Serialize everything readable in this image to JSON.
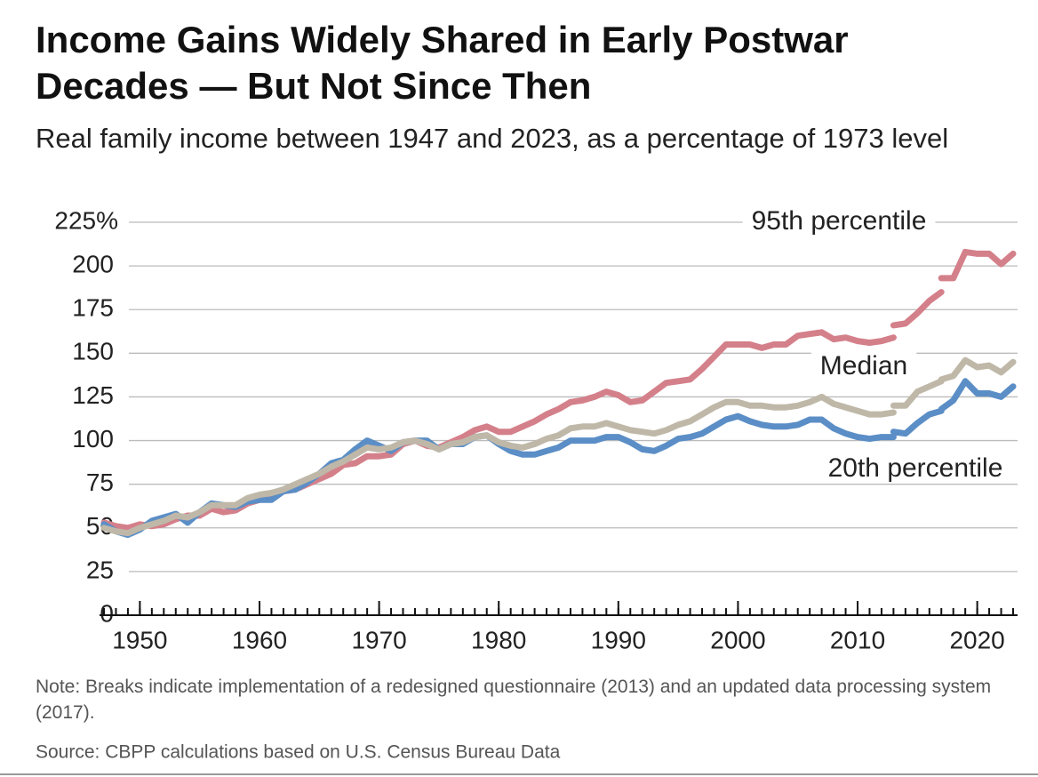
{
  "chart_data": {
    "type": "line",
    "title": "Income Gains Widely Shared in Early Postwar Decades — But Not Since Then",
    "subtitle": "Real family income between 1947 and 2023, as a percentage of 1973 level",
    "note": "Note: Breaks indicate implementation of a redesigned questionnaire (2013) and an updated data processing system (2017).",
    "source": "Source: CBPP calculations based on U.S. Census Bureau Data",
    "x": [
      1947,
      1948,
      1949,
      1950,
      1951,
      1952,
      1953,
      1954,
      1955,
      1956,
      1957,
      1958,
      1959,
      1960,
      1961,
      1962,
      1963,
      1964,
      1965,
      1966,
      1967,
      1968,
      1969,
      1970,
      1971,
      1972,
      1973,
      1974,
      1975,
      1976,
      1977,
      1978,
      1979,
      1980,
      1981,
      1982,
      1983,
      1984,
      1985,
      1986,
      1987,
      1988,
      1989,
      1990,
      1991,
      1992,
      1993,
      1994,
      1995,
      1996,
      1997,
      1998,
      1999,
      2000,
      2001,
      2002,
      2003,
      2004,
      2005,
      2006,
      2007,
      2008,
      2009,
      2010,
      2011,
      2012,
      2013,
      2013,
      2013,
      2014,
      2015,
      2016,
      2017,
      2017,
      2017,
      2018,
      2019,
      2020,
      2021,
      2022,
      2023
    ],
    "series": [
      {
        "name": "95th percentile",
        "color": "#d4808a",
        "values": [
          53,
          51,
          50,
          52,
          51,
          52,
          55,
          57,
          57,
          61,
          59,
          60,
          64,
          66,
          69,
          71,
          72,
          75,
          78,
          81,
          86,
          87,
          91,
          91,
          92,
          98,
          100,
          97,
          96,
          99,
          102,
          106,
          108,
          105,
          105,
          108,
          111,
          115,
          118,
          122,
          123,
          125,
          128,
          126,
          122,
          123,
          128,
          133,
          134,
          135,
          141,
          148,
          155,
          155,
          155,
          153,
          155,
          155,
          160,
          161,
          162,
          158,
          159,
          157,
          156,
          157,
          159,
          null,
          166,
          167,
          173,
          180,
          185,
          null,
          193,
          193,
          208,
          207,
          207,
          201,
          207
        ]
      },
      {
        "name": "20th percentile",
        "color": "#5b8ec6",
        "values": [
          52,
          48,
          46,
          49,
          54,
          56,
          58,
          53,
          59,
          64,
          63,
          62,
          65,
          66,
          66,
          71,
          72,
          76,
          81,
          87,
          89,
          95,
          100,
          97,
          94,
          99,
          100,
          100,
          95,
          98,
          98,
          102,
          103,
          98,
          94,
          92,
          92,
          94,
          96,
          100,
          100,
          100,
          102,
          102,
          99,
          95,
          94,
          97,
          101,
          102,
          104,
          108,
          112,
          114,
          111,
          109,
          108,
          108,
          109,
          112,
          112,
          107,
          104,
          102,
          101,
          102,
          102,
          null,
          105,
          104,
          110,
          115,
          117,
          null,
          118,
          123,
          134,
          127,
          127,
          125,
          131
        ]
      },
      {
        "name": "Median",
        "color": "#bfb8a8",
        "values": [
          50,
          48,
          47,
          50,
          52,
          54,
          57,
          56,
          59,
          63,
          63,
          63,
          67,
          69,
          70,
          72,
          75,
          78,
          81,
          85,
          88,
          92,
          96,
          95,
          96,
          99,
          100,
          98,
          95,
          98,
          99,
          102,
          103,
          99,
          97,
          96,
          98,
          101,
          103,
          107,
          108,
          108,
          110,
          108,
          106,
          105,
          104,
          106,
          109,
          111,
          115,
          119,
          122,
          122,
          120,
          120,
          119,
          119,
          120,
          122,
          125,
          121,
          119,
          117,
          115,
          115,
          116,
          null,
          120,
          120,
          128,
          131,
          134,
          null,
          135,
          137,
          146,
          142,
          143,
          139,
          145
        ]
      }
    ],
    "xlim": [
      1947,
      2023
    ],
    "xticks": [
      1950,
      1960,
      1970,
      1980,
      1990,
      2000,
      2010,
      2020
    ],
    "ylim": [
      0,
      225
    ],
    "yticks": [
      0,
      25,
      50,
      75,
      100,
      125,
      150,
      175,
      200,
      {
        "value": 225,
        "label": "225%"
      }
    ],
    "grid": true
  }
}
